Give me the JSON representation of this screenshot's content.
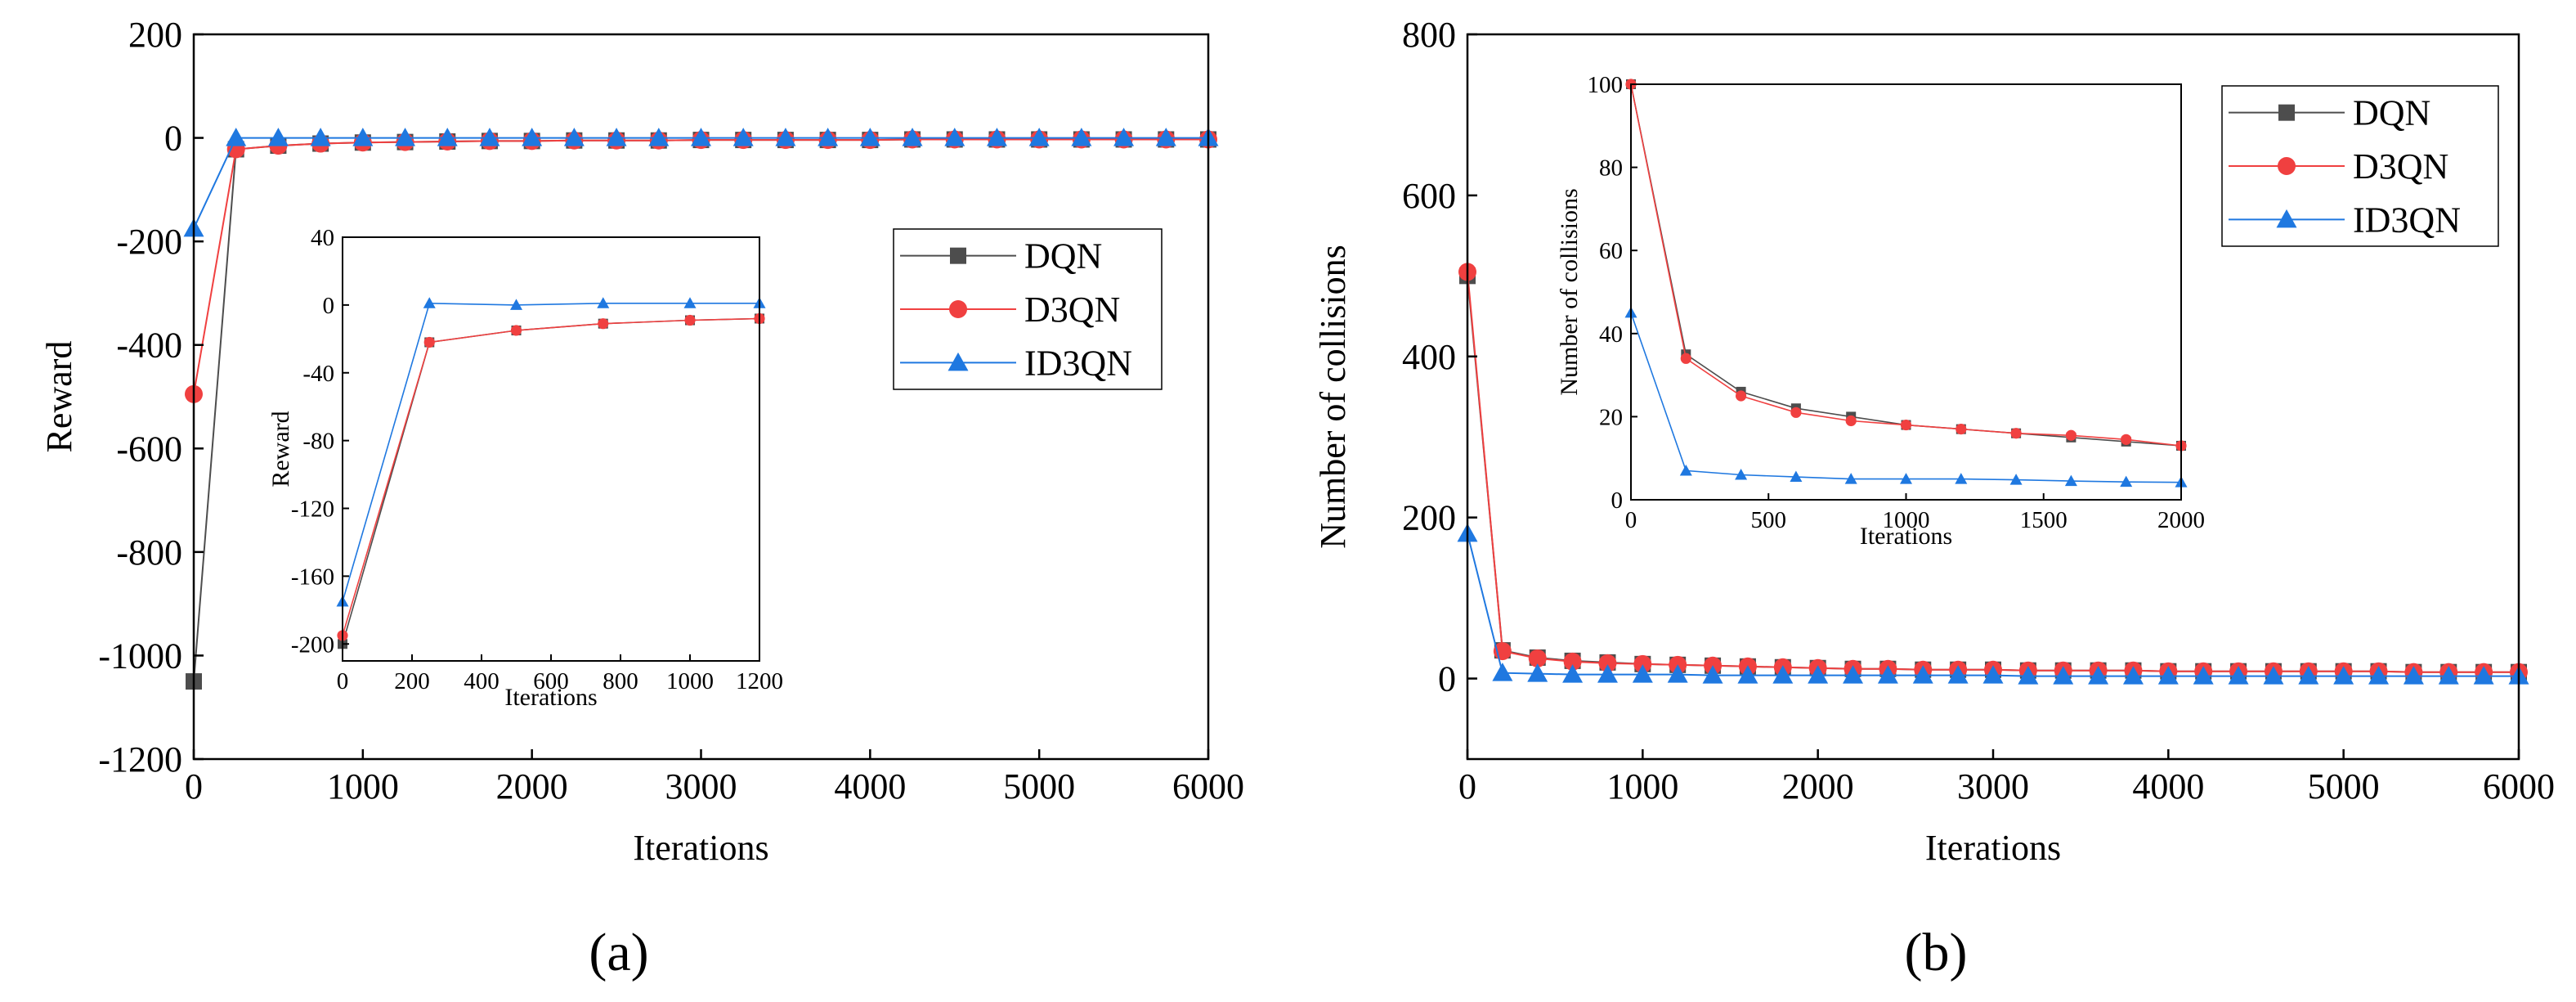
{
  "colors": {
    "DQN": "#4d4d4d",
    "D3QN": "#f04040",
    "ID3QN": "#1f78e0"
  },
  "chart_data": [
    {
      "id": "a",
      "type": "line",
      "panel_label": "(a)",
      "xlabel": "Iterations",
      "ylabel": "Reward",
      "xlim": [
        0,
        6000
      ],
      "ylim": [
        -1200,
        200
      ],
      "xticks": [
        0,
        1000,
        2000,
        3000,
        4000,
        5000,
        6000
      ],
      "yticks": [
        -1200,
        -1000,
        -800,
        -600,
        -400,
        -200,
        0,
        200
      ],
      "legend_position": "center-right",
      "series": [
        {
          "name": "DQN",
          "marker": "square",
          "x": [
            0,
            250,
            500,
            750,
            1000,
            1250,
            1500,
            1750,
            2000,
            2250,
            2500,
            2750,
            3000,
            3250,
            3500,
            3750,
            4000,
            4250,
            4500,
            4750,
            5000,
            5250,
            5500,
            5750,
            6000
          ],
          "y": [
            -1050,
            -22,
            -15,
            -11,
            -9,
            -8,
            -7,
            -6,
            -6,
            -5,
            -5,
            -5,
            -4,
            -4,
            -4,
            -4,
            -4,
            -3,
            -3,
            -3,
            -3,
            -3,
            -3,
            -3,
            -3
          ]
        },
        {
          "name": "D3QN",
          "marker": "circle",
          "x": [
            0,
            250,
            500,
            750,
            1000,
            1250,
            1500,
            1750,
            2000,
            2250,
            2500,
            2750,
            3000,
            3250,
            3500,
            3750,
            4000,
            4250,
            4500,
            4750,
            5000,
            5250,
            5500,
            5750,
            6000
          ],
          "y": [
            -495,
            -22,
            -15,
            -11,
            -9,
            -8,
            -7,
            -6,
            -6,
            -5,
            -5,
            -5,
            -4,
            -4,
            -4,
            -4,
            -4,
            -3,
            -3,
            -3,
            -3,
            -3,
            -3,
            -3,
            -3
          ]
        },
        {
          "name": "ID3QN",
          "marker": "triangle",
          "x": [
            0,
            250,
            500,
            750,
            1000,
            1250,
            1500,
            1750,
            2000,
            2250,
            2500,
            2750,
            3000,
            3250,
            3500,
            3750,
            4000,
            4250,
            4500,
            4750,
            5000,
            5250,
            5500,
            5750,
            6000
          ],
          "y": [
            -175,
            0,
            0,
            0,
            0,
            0,
            0,
            0,
            0,
            0,
            0,
            0,
            0,
            0,
            0,
            0,
            0,
            0,
            0,
            0,
            0,
            0,
            0,
            0,
            0
          ]
        }
      ],
      "inset": {
        "xlabel": "Iterations",
        "ylabel": "Reward",
        "xlim": [
          0,
          1200
        ],
        "ylim": [
          -210,
          40
        ],
        "xticks": [
          0,
          200,
          400,
          600,
          800,
          1000,
          1200
        ],
        "yticks": [
          -200,
          -160,
          -120,
          -80,
          -40,
          0,
          40
        ],
        "series": [
          {
            "name": "DQN",
            "marker": "square",
            "x": [
              0,
              250,
              500,
              750,
              1000,
              1200
            ],
            "y": [
              -200,
              -22,
              -15,
              -11,
              -9,
              -8
            ]
          },
          {
            "name": "D3QN",
            "marker": "circle",
            "x": [
              0,
              250,
              500,
              750,
              1000,
              1200
            ],
            "y": [
              -195,
              -22,
              -15,
              -11,
              -9,
              -8
            ]
          },
          {
            "name": "ID3QN",
            "marker": "triangle",
            "x": [
              0,
              250,
              500,
              750,
              1000,
              1200
            ],
            "y": [
              -175,
              1,
              0,
              1,
              1,
              1
            ]
          }
        ]
      }
    },
    {
      "id": "b",
      "type": "line",
      "panel_label": "(b)",
      "xlabel": "Iterations",
      "ylabel": "Number of collisions",
      "xlim": [
        0,
        6000
      ],
      "ylim": [
        -100,
        800
      ],
      "xticks": [
        0,
        1000,
        2000,
        3000,
        4000,
        5000,
        6000
      ],
      "yticks": [
        0,
        200,
        400,
        600,
        800
      ],
      "legend_position": "top-right",
      "series": [
        {
          "name": "DQN",
          "marker": "square",
          "x": [
            0,
            200,
            400,
            600,
            800,
            1000,
            1200,
            1400,
            1600,
            1800,
            2000,
            2200,
            2400,
            2600,
            2800,
            3000,
            3200,
            3400,
            3600,
            3800,
            4000,
            4200,
            4400,
            4600,
            4800,
            5000,
            5200,
            5400,
            5600,
            5800,
            6000
          ],
          "y": [
            500,
            35,
            26,
            22,
            20,
            18,
            17,
            16,
            15,
            14,
            13,
            12,
            12,
            11,
            11,
            11,
            10,
            10,
            10,
            10,
            9,
            9,
            9,
            9,
            9,
            9,
            9,
            8,
            8,
            8,
            8
          ]
        },
        {
          "name": "D3QN",
          "marker": "circle",
          "x": [
            0,
            200,
            400,
            600,
            800,
            1000,
            1200,
            1400,
            1600,
            1800,
            2000,
            2200,
            2400,
            2600,
            2800,
            3000,
            3200,
            3400,
            3600,
            3800,
            4000,
            4200,
            4400,
            4600,
            4800,
            5000,
            5200,
            5400,
            5600,
            5800,
            6000
          ],
          "y": [
            505,
            34,
            25,
            21,
            19,
            18,
            17,
            16,
            15,
            14,
            13,
            12,
            12,
            11,
            11,
            11,
            10,
            10,
            10,
            10,
            9,
            9,
            9,
            9,
            9,
            9,
            9,
            8,
            8,
            8,
            8
          ]
        },
        {
          "name": "ID3QN",
          "marker": "triangle",
          "x": [
            0,
            200,
            400,
            600,
            800,
            1000,
            1200,
            1400,
            1600,
            1800,
            2000,
            2200,
            2400,
            2600,
            2800,
            3000,
            3200,
            3400,
            3600,
            3800,
            4000,
            4200,
            4400,
            4600,
            4800,
            5000,
            5200,
            5400,
            5600,
            5800,
            6000
          ],
          "y": [
            180,
            7,
            6,
            5,
            5,
            5,
            5,
            4,
            4,
            4,
            4,
            4,
            4,
            4,
            4,
            4,
            3,
            3,
            3,
            3,
            3,
            3,
            3,
            3,
            3,
            3,
            3,
            3,
            3,
            3,
            3
          ]
        }
      ],
      "inset": {
        "xlabel": "Iterations",
        "ylabel": "Number of collisions",
        "xlim": [
          0,
          2000
        ],
        "ylim": [
          0,
          100
        ],
        "xticks": [
          0,
          500,
          1000,
          1500,
          2000
        ],
        "yticks": [
          0,
          20,
          40,
          60,
          80,
          100
        ],
        "series": [
          {
            "name": "DQN",
            "marker": "square",
            "x": [
              0,
              200,
              400,
              600,
              800,
              1000,
              1200,
              1400,
              1600,
              1800,
              2000
            ],
            "y": [
              100,
              35,
              26,
              22,
              20,
              18,
              17,
              16,
              15,
              14,
              13
            ]
          },
          {
            "name": "D3QN",
            "marker": "circle",
            "x": [
              0,
              200,
              400,
              600,
              800,
              1000,
              1200,
              1400,
              1600,
              1800,
              2000
            ],
            "y": [
              100,
              34,
              25,
              21,
              19,
              18,
              17,
              16,
              15.5,
              14.5,
              13
            ]
          },
          {
            "name": "ID3QN",
            "marker": "triangle",
            "x": [
              0,
              200,
              400,
              600,
              800,
              1000,
              1200,
              1400,
              1600,
              1800,
              2000
            ],
            "y": [
              45,
              7,
              6,
              5.5,
              5,
              5,
              5,
              4.8,
              4.5,
              4.3,
              4.2
            ]
          }
        ]
      }
    }
  ]
}
